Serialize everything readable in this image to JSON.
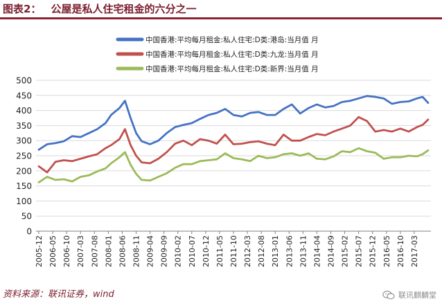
{
  "header": {
    "figure_label": "图表2：",
    "title": "公屋是私人住宅租金的六分之一"
  },
  "footer": {
    "source": "资料来源：联讯证券，wind",
    "watermark": "联讯麒麟堂",
    "watermark_icon": "wechat-icon"
  },
  "chart_data": {
    "type": "line",
    "title": "",
    "xlabel": "",
    "ylabel": "",
    "ylim": [
      0,
      500
    ],
    "yticks": [
      0,
      50,
      100,
      150,
      200,
      250,
      300,
      350,
      400,
      450,
      500
    ],
    "xlim": [
      "2005-12",
      "2017-08"
    ],
    "xtick_labels": [
      "2005-12",
      "2006-05",
      "2006-10",
      "2007-03",
      "2007-08",
      "2008-01",
      "2008-06",
      "2008-11",
      "2009-04",
      "2009-09",
      "2010-02",
      "2010-07",
      "2010-12",
      "2011-05",
      "2011-10",
      "2012-03",
      "2012-08",
      "2013-01",
      "2013-06",
      "2013-11",
      "2014-04",
      "2014-09",
      "2015-02",
      "2015-07",
      "2015-12",
      "2016-05",
      "2016-10",
      "2017-03"
    ],
    "grid": "horizontal",
    "legend": "top",
    "series": [
      {
        "name": "中国香港:平均每月租金:私人住宅:D类:港岛:当月值 月",
        "color": "#4472c4",
        "points": [
          [
            "2005-12",
            270
          ],
          [
            "2006-03",
            288
          ],
          [
            "2006-06",
            292
          ],
          [
            "2006-09",
            298
          ],
          [
            "2006-12",
            315
          ],
          [
            "2007-03",
            312
          ],
          [
            "2007-06",
            325
          ],
          [
            "2007-09",
            338
          ],
          [
            "2007-12",
            358
          ],
          [
            "2008-02",
            385
          ],
          [
            "2008-05",
            408
          ],
          [
            "2008-07",
            432
          ],
          [
            "2008-09",
            375
          ],
          [
            "2008-11",
            325
          ],
          [
            "2009-01",
            298
          ],
          [
            "2009-04",
            288
          ],
          [
            "2009-07",
            300
          ],
          [
            "2009-10",
            325
          ],
          [
            "2010-01",
            345
          ],
          [
            "2010-04",
            352
          ],
          [
            "2010-07",
            358
          ],
          [
            "2010-10",
            372
          ],
          [
            "2011-01",
            385
          ],
          [
            "2011-04",
            392
          ],
          [
            "2011-07",
            405
          ],
          [
            "2011-10",
            385
          ],
          [
            "2012-01",
            380
          ],
          [
            "2012-04",
            392
          ],
          [
            "2012-07",
            395
          ],
          [
            "2012-10",
            385
          ],
          [
            "2013-01",
            385
          ],
          [
            "2013-04",
            405
          ],
          [
            "2013-07",
            420
          ],
          [
            "2013-10",
            390
          ],
          [
            "2014-01",
            408
          ],
          [
            "2014-04",
            420
          ],
          [
            "2014-07",
            410
          ],
          [
            "2014-10",
            415
          ],
          [
            "2015-01",
            428
          ],
          [
            "2015-04",
            432
          ],
          [
            "2015-07",
            440
          ],
          [
            "2015-10",
            448
          ],
          [
            "2016-01",
            445
          ],
          [
            "2016-04",
            440
          ],
          [
            "2016-07",
            422
          ],
          [
            "2016-10",
            428
          ],
          [
            "2017-01",
            430
          ],
          [
            "2017-04",
            440
          ],
          [
            "2017-06",
            445
          ],
          [
            "2017-08",
            425
          ]
        ]
      },
      {
        "name": "中国香港:平均每月租金:私人住宅:D类:九龙:当月值 月",
        "color": "#c0504d",
        "points": [
          [
            "2005-12",
            215
          ],
          [
            "2006-03",
            195
          ],
          [
            "2006-06",
            230
          ],
          [
            "2006-09",
            235
          ],
          [
            "2006-12",
            232
          ],
          [
            "2007-03",
            240
          ],
          [
            "2007-06",
            248
          ],
          [
            "2007-09",
            255
          ],
          [
            "2007-12",
            275
          ],
          [
            "2008-02",
            285
          ],
          [
            "2008-05",
            305
          ],
          [
            "2008-07",
            338
          ],
          [
            "2008-09",
            285
          ],
          [
            "2008-11",
            250
          ],
          [
            "2009-01",
            228
          ],
          [
            "2009-04",
            225
          ],
          [
            "2009-07",
            240
          ],
          [
            "2009-10",
            262
          ],
          [
            "2010-01",
            290
          ],
          [
            "2010-04",
            300
          ],
          [
            "2010-07",
            285
          ],
          [
            "2010-10",
            305
          ],
          [
            "2011-01",
            300
          ],
          [
            "2011-04",
            290
          ],
          [
            "2011-07",
            320
          ],
          [
            "2011-10",
            288
          ],
          [
            "2012-01",
            290
          ],
          [
            "2012-04",
            295
          ],
          [
            "2012-07",
            298
          ],
          [
            "2012-10",
            290
          ],
          [
            "2013-01",
            285
          ],
          [
            "2013-04",
            320
          ],
          [
            "2013-07",
            300
          ],
          [
            "2013-10",
            300
          ],
          [
            "2014-01",
            312
          ],
          [
            "2014-04",
            322
          ],
          [
            "2014-07",
            318
          ],
          [
            "2014-10",
            330
          ],
          [
            "2015-01",
            340
          ],
          [
            "2015-04",
            350
          ],
          [
            "2015-07",
            378
          ],
          [
            "2015-10",
            365
          ],
          [
            "2016-01",
            330
          ],
          [
            "2016-04",
            335
          ],
          [
            "2016-07",
            330
          ],
          [
            "2016-10",
            340
          ],
          [
            "2017-01",
            330
          ],
          [
            "2017-04",
            345
          ],
          [
            "2017-06",
            352
          ],
          [
            "2017-08",
            370
          ]
        ]
      },
      {
        "name": "中国香港:平均每月租金:私人住宅:D类:新界:当月值 月",
        "color": "#9bbb59",
        "points": [
          [
            "2005-12",
            162
          ],
          [
            "2006-03",
            180
          ],
          [
            "2006-06",
            170
          ],
          [
            "2006-09",
            172
          ],
          [
            "2006-12",
            165
          ],
          [
            "2007-03",
            180
          ],
          [
            "2007-06",
            185
          ],
          [
            "2007-09",
            198
          ],
          [
            "2007-12",
            208
          ],
          [
            "2008-02",
            225
          ],
          [
            "2008-05",
            245
          ],
          [
            "2008-07",
            262
          ],
          [
            "2008-09",
            220
          ],
          [
            "2008-11",
            190
          ],
          [
            "2009-01",
            170
          ],
          [
            "2009-04",
            168
          ],
          [
            "2009-07",
            180
          ],
          [
            "2009-10",
            192
          ],
          [
            "2010-01",
            210
          ],
          [
            "2010-04",
            222
          ],
          [
            "2010-07",
            222
          ],
          [
            "2010-10",
            232
          ],
          [
            "2011-01",
            235
          ],
          [
            "2011-04",
            238
          ],
          [
            "2011-07",
            258
          ],
          [
            "2011-10",
            242
          ],
          [
            "2012-01",
            238
          ],
          [
            "2012-04",
            232
          ],
          [
            "2012-07",
            250
          ],
          [
            "2012-10",
            242
          ],
          [
            "2013-01",
            245
          ],
          [
            "2013-04",
            255
          ],
          [
            "2013-07",
            258
          ],
          [
            "2013-10",
            250
          ],
          [
            "2014-01",
            258
          ],
          [
            "2014-04",
            240
          ],
          [
            "2014-07",
            238
          ],
          [
            "2014-10",
            248
          ],
          [
            "2015-01",
            265
          ],
          [
            "2015-04",
            262
          ],
          [
            "2015-07",
            275
          ],
          [
            "2015-10",
            265
          ],
          [
            "2016-01",
            260
          ],
          [
            "2016-04",
            240
          ],
          [
            "2016-07",
            245
          ],
          [
            "2016-10",
            245
          ],
          [
            "2017-01",
            250
          ],
          [
            "2017-04",
            248
          ],
          [
            "2017-06",
            255
          ],
          [
            "2017-08",
            268
          ]
        ]
      }
    ]
  }
}
